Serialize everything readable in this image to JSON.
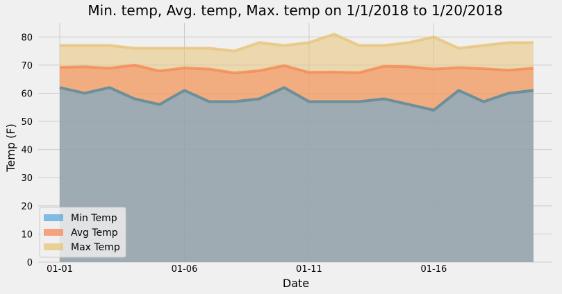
{
  "chart_data": {
    "type": "area",
    "title": "Min. temp, Avg. temp, Max. temp on 1/1/2018 to 1/20/2018",
    "xlabel": "Date",
    "ylabel": "Temp (F)",
    "x": [
      "01-01",
      "01-02",
      "01-03",
      "01-04",
      "01-05",
      "01-06",
      "01-07",
      "01-08",
      "01-09",
      "01-10",
      "01-11",
      "01-12",
      "01-13",
      "01-14",
      "01-15",
      "01-16",
      "01-17",
      "01-18",
      "01-19",
      "01-20"
    ],
    "xticks": [
      "01-01",
      "01-06",
      "01-11",
      "01-16"
    ],
    "yticks": [
      0,
      10,
      20,
      30,
      40,
      50,
      60,
      70,
      80
    ],
    "ylim": [
      0,
      85
    ],
    "grid": true,
    "legend_position": "lower-left",
    "series": [
      {
        "name": "Min Temp",
        "color": "#5aa9dd",
        "values": [
          62,
          60,
          62,
          58,
          56,
          61,
          57,
          57,
          58,
          62,
          57,
          57,
          57,
          58,
          56,
          54,
          61,
          57,
          60,
          61
        ]
      },
      {
        "name": "Avg Temp",
        "color": "#f58a58",
        "values": [
          69.2,
          69.4,
          68.9,
          70.0,
          67.9,
          69.0,
          68.6,
          67.2,
          68.0,
          69.8,
          67.4,
          67.5,
          67.3,
          69.6,
          69.4,
          68.6,
          69.1,
          68.7,
          68.2,
          68.9
        ]
      },
      {
        "name": "Max Temp",
        "color": "#e8c47a",
        "values": [
          77,
          77,
          77,
          76,
          76,
          76,
          76,
          75,
          78,
          77,
          78,
          81,
          77,
          77,
          78,
          80,
          76,
          77,
          78,
          78
        ]
      }
    ]
  }
}
